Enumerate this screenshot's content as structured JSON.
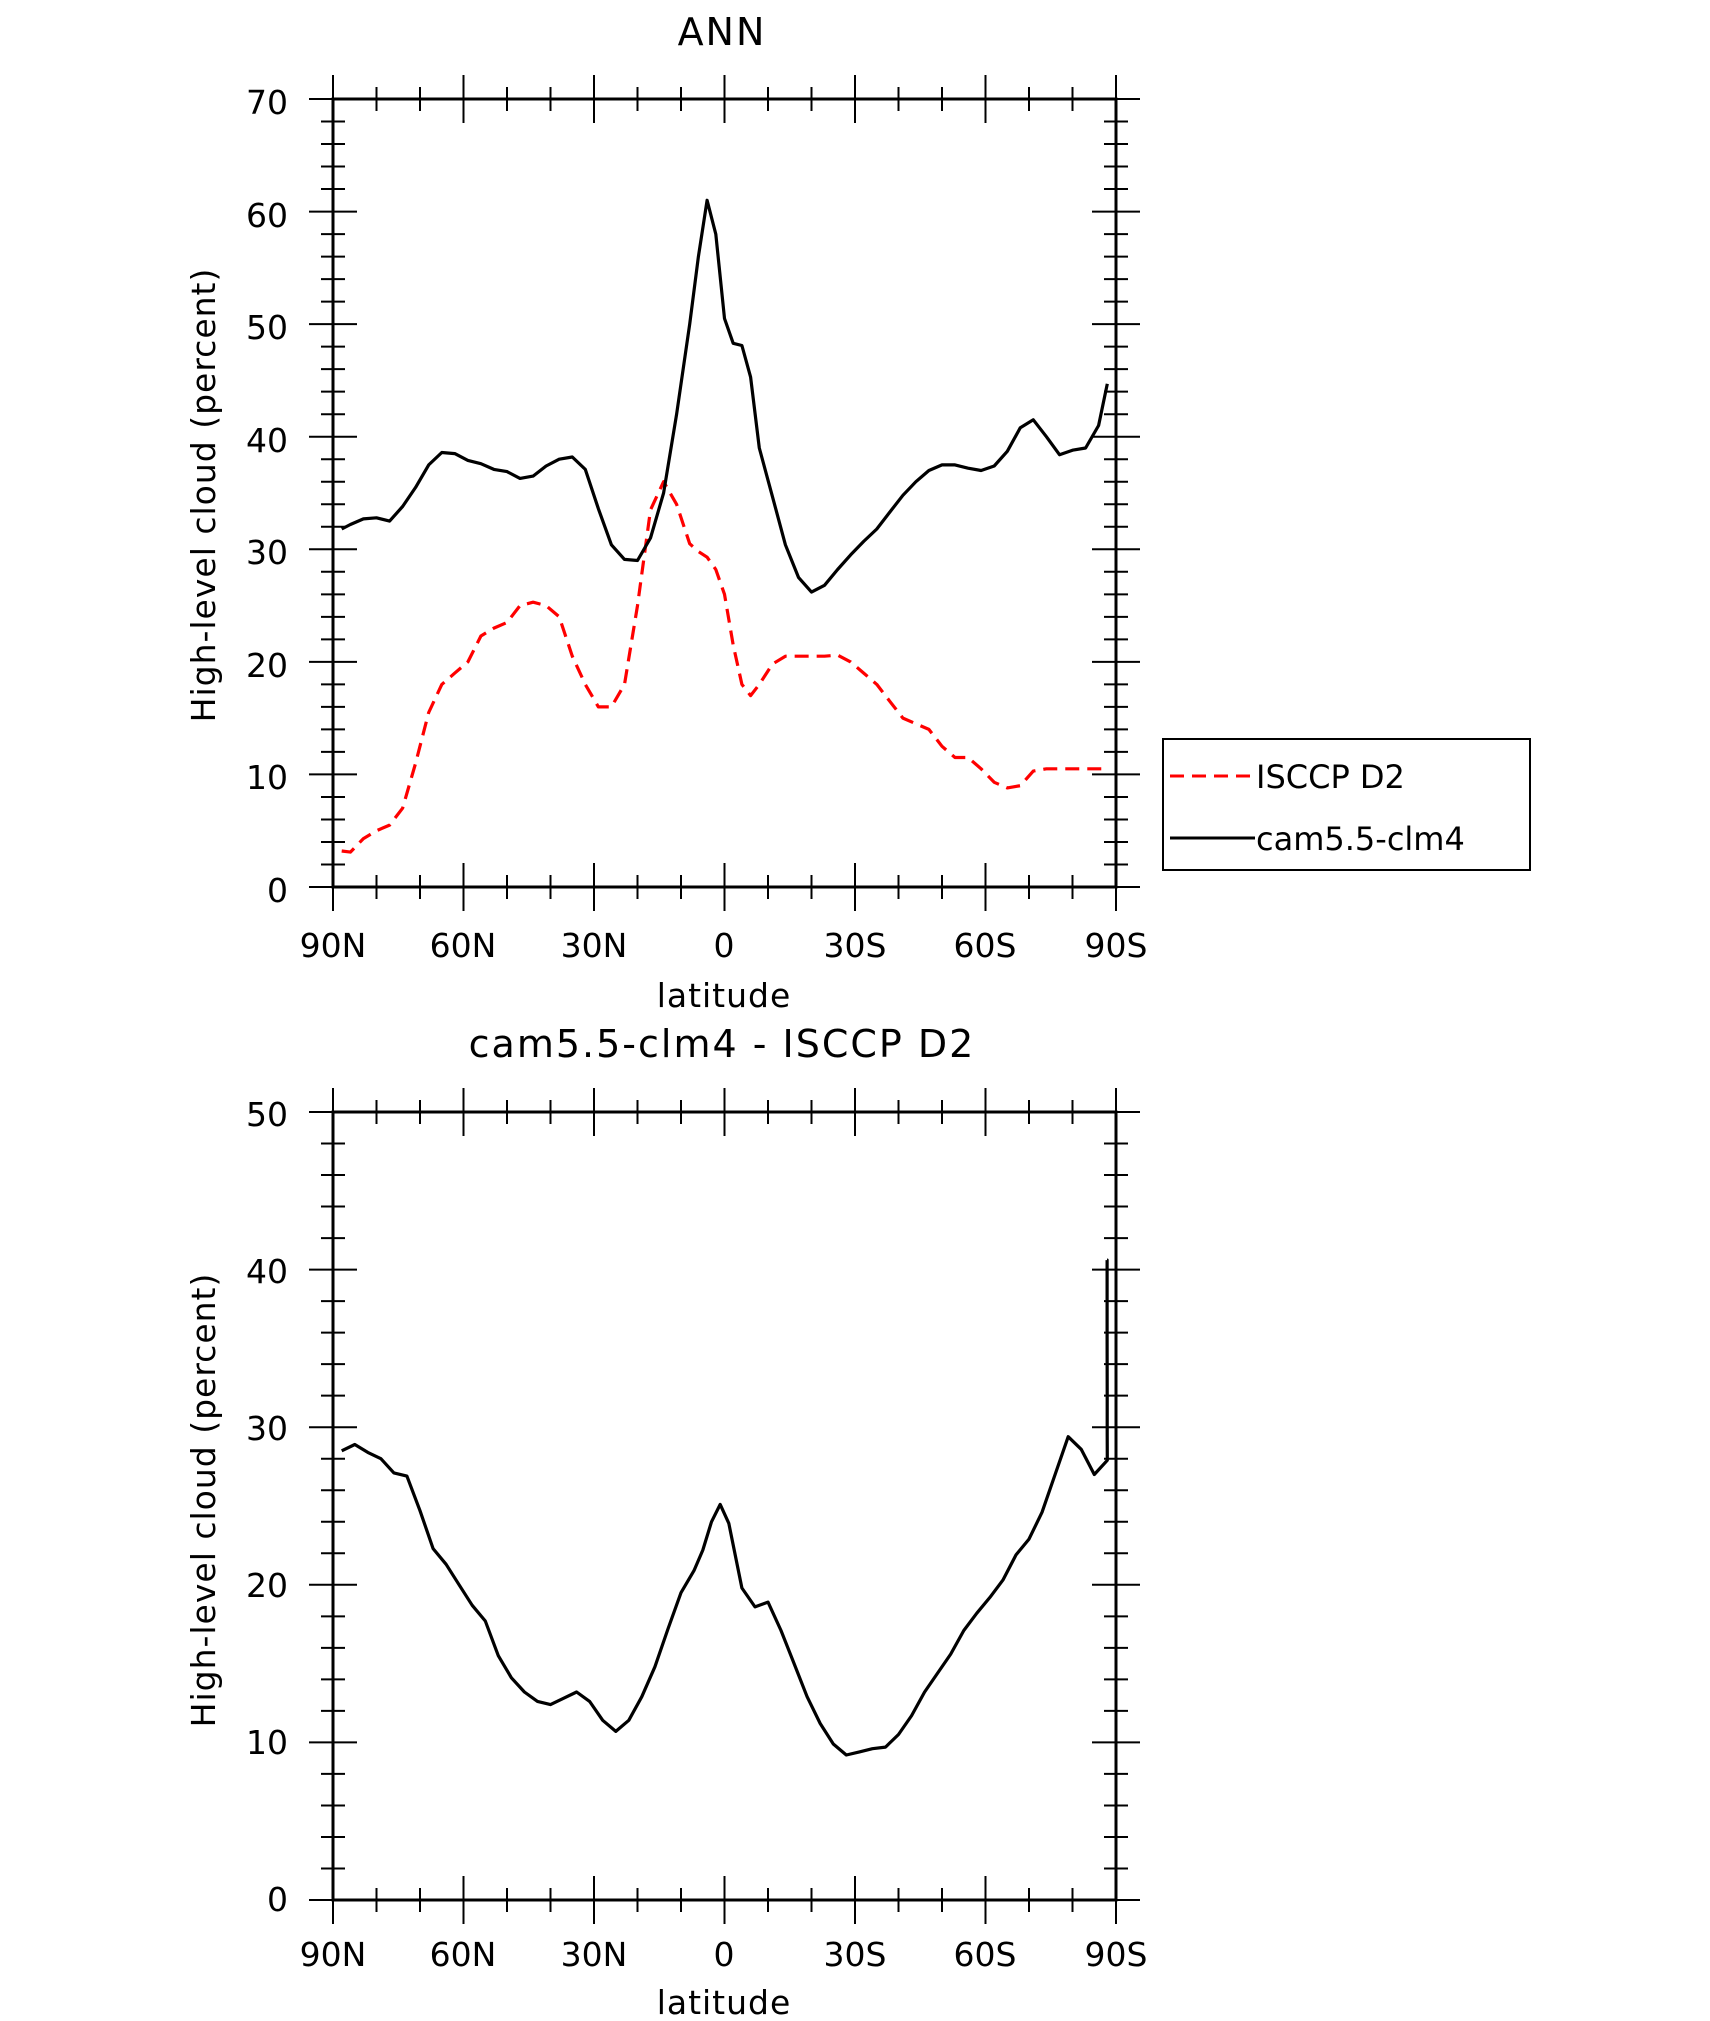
{
  "chart_data": [
    {
      "type": "line",
      "title": "ANN",
      "xlabel": "latitude",
      "ylabel": "High-level cloud (percent)",
      "x_ticks": [
        "90N",
        "60N",
        "30N",
        "0",
        "30S",
        "60S",
        "90S"
      ],
      "y_ticks": [
        "0",
        "10",
        "20",
        "30",
        "40",
        "50",
        "60",
        "70"
      ],
      "xlim": [
        90,
        -90
      ],
      "ylim": [
        0,
        70
      ],
      "legend": {
        "position": "right",
        "entries": [
          "ISCCP D2",
          "cam5.5-clm4"
        ]
      },
      "series": [
        {
          "name": "ISCCP D2",
          "color": "#ff0000",
          "style": "dashed",
          "x": [
            88,
            86,
            83,
            80,
            77,
            74,
            71,
            68,
            65,
            62,
            59,
            56,
            53,
            50,
            47,
            44,
            41,
            38,
            35,
            32,
            29,
            26,
            23,
            20,
            17,
            14,
            11,
            8,
            6,
            4,
            2,
            0,
            -2,
            -4,
            -6,
            -8,
            -11,
            -14,
            -17,
            -20,
            -23,
            -26,
            -29,
            -32,
            -35,
            -38,
            -41,
            -44,
            -47,
            -50,
            -53,
            -56,
            -59,
            -62,
            -65,
            -68,
            -71,
            -74,
            -77,
            -80,
            -83,
            -86,
            -88
          ],
          "y": [
            3.2,
            3.1,
            4.3,
            5.0,
            5.5,
            7.0,
            11.0,
            15.5,
            18.0,
            19.0,
            20.0,
            22.3,
            23.0,
            23.5,
            25.0,
            25.3,
            25.0,
            24.0,
            20.5,
            18.0,
            16.0,
            16.0,
            18.0,
            25.0,
            33.5,
            36.0,
            34.0,
            30.5,
            29.8,
            29.3,
            28.2,
            26.0,
            21.5,
            18.0,
            17.0,
            18.0,
            19.8,
            20.5,
            20.5,
            20.5,
            20.5,
            20.6,
            20.0,
            19.0,
            18.0,
            16.5,
            15.0,
            14.5,
            14.0,
            12.5,
            11.5,
            11.5,
            10.5,
            9.3,
            8.8,
            9.0,
            10.3,
            10.5,
            10.5,
            10.5,
            10.5,
            10.5,
            10.5
          ],
          "x_end": -88
        },
        {
          "name": "cam5.5-clm4",
          "color": "#000000",
          "style": "solid",
          "x": [
            88,
            86,
            83,
            80,
            77,
            74,
            71,
            68,
            65,
            62,
            59,
            56,
            53,
            50,
            47,
            44,
            41,
            38,
            35,
            32,
            29,
            26,
            23,
            20,
            17,
            14,
            11,
            8,
            6,
            4,
            2,
            0,
            -2,
            -4,
            -6,
            -8,
            -11,
            -14,
            -17,
            -20,
            -23,
            -26,
            -29,
            -32,
            -35,
            -38,
            -41,
            -44,
            -47,
            -50,
            -53,
            -56,
            -59,
            -62,
            -65,
            -68,
            -71,
            -74,
            -77,
            -80,
            -83,
            -86,
            -88
          ],
          "y": [
            31.8,
            32.2,
            32.7,
            32.8,
            32.5,
            33.8,
            35.5,
            37.5,
            38.6,
            38.5,
            37.9,
            37.6,
            37.1,
            36.9,
            36.3,
            36.5,
            37.4,
            38.0,
            38.2,
            37.1,
            33.6,
            30.4,
            29.1,
            29.0,
            31.0,
            35.0,
            42.0,
            50.0,
            56.0,
            61.0,
            58.0,
            50.5,
            48.3,
            48.1,
            45.3,
            39.0,
            34.7,
            30.4,
            27.5,
            26.2,
            26.8,
            28.2,
            29.5,
            30.7,
            31.8,
            33.3,
            34.8,
            36.0,
            37.0,
            37.5,
            37.5,
            37.2,
            37.0,
            37.4,
            38.7,
            40.8,
            41.5,
            40.0,
            38.4,
            38.8,
            39.0,
            41.0,
            44.7
          ],
          "x_end": -88
        }
      ]
    },
    {
      "type": "line",
      "title": "cam5.5-clm4 - ISCCP D2",
      "xlabel": "latitude",
      "ylabel": "High-level cloud (percent)",
      "x_ticks": [
        "90N",
        "60N",
        "30N",
        "0",
        "30S",
        "60S",
        "90S"
      ],
      "y_ticks": [
        "0",
        "10",
        "20",
        "30",
        "40",
        "50"
      ],
      "xlim": [
        90,
        -90
      ],
      "ylim": [
        0,
        50
      ],
      "series": [
        {
          "color": "#000000",
          "style": "solid",
          "x": [
            88,
            85,
            82,
            79,
            76,
            73,
            70,
            67,
            64,
            61,
            58,
            55,
            52,
            49,
            46,
            43,
            40,
            37,
            34,
            31,
            28,
            25,
            22,
            19,
            16,
            13,
            10,
            7,
            5,
            3,
            1,
            -1,
            -4,
            -7,
            -10,
            -13,
            -16,
            -19,
            -22,
            -25,
            -28,
            -31,
            -34,
            -37,
            -40,
            -43,
            -46,
            -49,
            -52,
            -55,
            -58,
            -61,
            -64,
            -67,
            -70,
            -73,
            -76,
            -79,
            -82,
            -85,
            -88
          ],
          "y": [
            28.5,
            28.9,
            28.4,
            28.0,
            27.1,
            26.9,
            24.7,
            22.3,
            21.3,
            20.0,
            18.7,
            17.7,
            15.5,
            14.1,
            13.2,
            12.6,
            12.4,
            12.8,
            13.2,
            12.6,
            11.4,
            10.7,
            11.4,
            12.9,
            14.8,
            17.2,
            19.5,
            20.9,
            22.2,
            24.0,
            25.1,
            23.9,
            19.8,
            18.6,
            18.9,
            17.1,
            15.0,
            12.9,
            11.2,
            9.9,
            9.2,
            9.4,
            9.6,
            9.7,
            10.5,
            11.7,
            13.2,
            14.4,
            15.6,
            17.1,
            18.2,
            19.2,
            20.3,
            21.9,
            22.9,
            24.6,
            27.0,
            29.4,
            28.6,
            27.0,
            27.9
          ],
          "tail_x": [
            -91,
            -94,
            -97,
            -100,
            -103
          ],
          "tail_y": [
            29.5,
            32.2,
            35.8,
            40.6,
            40.6
          ]
        }
      ]
    }
  ]
}
